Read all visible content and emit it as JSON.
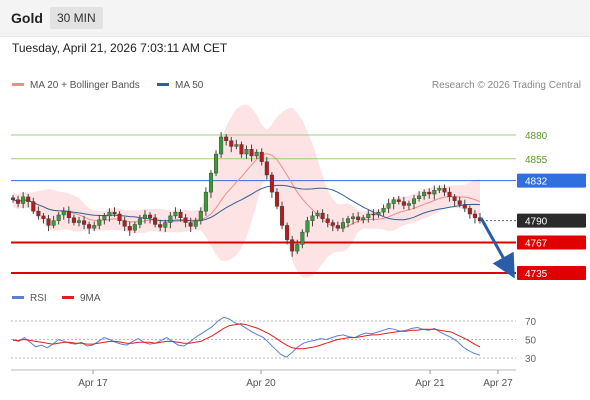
{
  "header": {
    "title": "Gold",
    "period": "30 MIN"
  },
  "timestamp": "Tuesday, April 21, 2026 7:03:11 AM CET",
  "copyright": "Research © 2026 Trading Central",
  "legend": [
    {
      "label": "MA 20 + Bollinger Bands",
      "color": "#f08c8c"
    },
    {
      "label": "MA 50",
      "color": "#335f99"
    }
  ],
  "rsi_legend": [
    {
      "label": "RSI",
      "color": "#5b7fd6"
    },
    {
      "label": "9MA",
      "color": "#e02020"
    }
  ],
  "chart_data": {
    "type": "candlestick",
    "x_ticks": [
      "Apr 17",
      "Apr 20",
      "Apr 21",
      "Apr 27"
    ],
    "levels": [
      {
        "value": 4880,
        "label": "4880",
        "style": "green-line"
      },
      {
        "value": 4855,
        "label": "4855",
        "style": "green-line"
      },
      {
        "value": 4832,
        "label": "4832",
        "style": "blue-box",
        "color": "#2f6fe0"
      },
      {
        "value": 4790,
        "label": "4790",
        "style": "current-price",
        "color": "#2a2a2a"
      },
      {
        "value": 4767,
        "label": "4767",
        "style": "red-box",
        "color": "#e00000"
      },
      {
        "value": 4735,
        "label": "4735",
        "style": "red-box",
        "color": "#e00000"
      }
    ],
    "close_series": [
      4812,
      4808,
      4815,
      4810,
      4800,
      4795,
      4792,
      4785,
      4790,
      4796,
      4800,
      4793,
      4788,
      4790,
      4786,
      4782,
      4785,
      4791,
      4795,
      4799,
      4797,
      4790,
      4784,
      4780,
      4786,
      4792,
      4796,
      4793,
      4786,
      4783,
      4788,
      4795,
      4799,
      4793,
      4788,
      4784,
      4790,
      4800,
      4820,
      4840,
      4860,
      4878,
      4874,
      4868,
      4870,
      4860,
      4865,
      4858,
      4862,
      4852,
      4838,
      4820,
      4805,
      4785,
      4770,
      4758,
      4765,
      4778,
      4790,
      4795,
      4798,
      4792,
      4788,
      4785,
      4782,
      4788,
      4792,
      4794,
      4791,
      4793,
      4797,
      4796,
      4799,
      4803,
      4808,
      4812,
      4810,
      4806,
      4808,
      4813,
      4816,
      4820,
      4818,
      4822,
      4824,
      4820,
      4815,
      4811,
      4807,
      4803,
      4797,
      4793,
      4790
    ],
    "rsi": {
      "ticks": [
        70,
        50,
        30
      ],
      "range": [
        20,
        80
      ],
      "rsi_values": [
        50,
        48,
        52,
        47,
        42,
        44,
        41,
        45,
        50,
        48,
        46,
        45,
        47,
        43,
        44,
        48,
        52,
        50,
        47,
        45,
        44,
        48,
        51,
        47,
        45,
        46,
        49,
        52,
        48,
        44,
        43,
        47,
        52,
        56,
        60,
        64,
        70,
        74,
        72,
        68,
        66,
        62,
        58,
        55,
        52,
        46,
        40,
        34,
        31,
        36,
        42,
        46,
        48,
        49,
        51,
        50,
        52,
        54,
        55,
        53,
        52,
        55,
        57,
        56,
        58,
        60,
        62,
        61,
        59,
        60,
        62,
        63,
        61,
        60,
        62,
        58,
        55,
        52,
        48,
        42,
        38,
        35,
        33
      ],
      "ma9_values": [
        49,
        49,
        50,
        49,
        48,
        47,
        46,
        45,
        46,
        47,
        47,
        46,
        46,
        45,
        45,
        46,
        47,
        48,
        48,
        47,
        46,
        46,
        47,
        47,
        47,
        46,
        47,
        48,
        48,
        47,
        46,
        46,
        47,
        48,
        51,
        54,
        58,
        62,
        65,
        66,
        67,
        66,
        64,
        62,
        59,
        56,
        52,
        48,
        44,
        41,
        40,
        40,
        41,
        42,
        44,
        46,
        48,
        50,
        51,
        52,
        52,
        53,
        54,
        55,
        55,
        56,
        57,
        58,
        59,
        59,
        60,
        60,
        61,
        61,
        61,
        60,
        59,
        58,
        55,
        52,
        49,
        45,
        42
      ]
    }
  }
}
